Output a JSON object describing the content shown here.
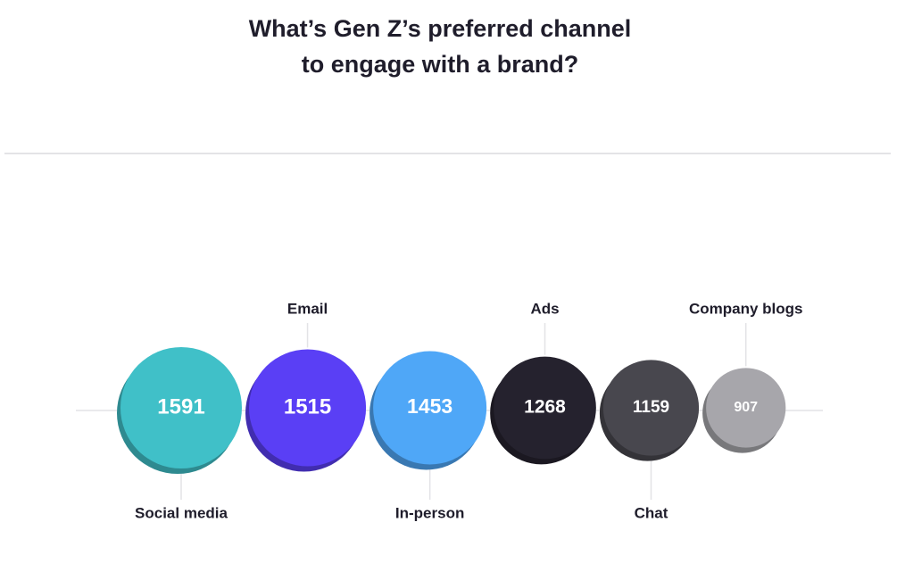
{
  "chart_data": {
    "type": "bubble",
    "title": "What’s Gen Z’s preferred channel\nto engage with a brand?",
    "categories": [
      "Social media",
      "Email",
      "In-person",
      "Ads",
      "Chat",
      "Company blogs"
    ],
    "values": [
      1591,
      1515,
      1453,
      1268,
      1159,
      907
    ],
    "colors": [
      "#40c0c8",
      "#5a3ff5",
      "#4fa7f7",
      "#25222e",
      "#48474e",
      "#a7a6ab"
    ]
  }
}
